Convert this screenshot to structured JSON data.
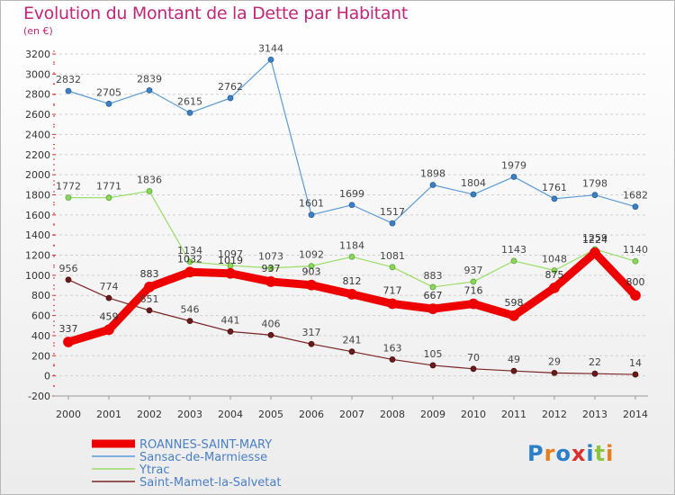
{
  "title": "Evolution du Montant de la Dette par Habitant",
  "unit_label": "(en €)",
  "logo": "Proxiti",
  "chart_data": {
    "type": "line",
    "title": "Evolution du Montant de la Dette par Habitant",
    "ylabel": "(en €)",
    "xlabel": "",
    "ylim": [
      -200,
      3200
    ],
    "yticks": [
      -200,
      0,
      200,
      400,
      600,
      800,
      1000,
      1200,
      1400,
      1600,
      1800,
      2000,
      2200,
      2400,
      2600,
      2800,
      3000,
      3200
    ],
    "x": [
      "2000",
      "2001",
      "2002",
      "2003",
      "2004",
      "2005",
      "2006",
      "2007",
      "2008",
      "2009",
      "2010",
      "2011",
      "2012",
      "2013",
      "2014"
    ],
    "grid": "horizontal dashed",
    "legend_position": "bottom-left",
    "series": [
      {
        "name": "ROANNES-SAINT-MARY",
        "color": "#ee0000",
        "values": [
          337,
          459,
          883,
          1032,
          1019,
          937,
          903,
          812,
          717,
          667,
          716,
          598,
          875,
          1224,
          800
        ]
      },
      {
        "name": "Sansac-de-Marmiesse",
        "color": "#5b9bd5",
        "values": [
          2832,
          2705,
          2839,
          2615,
          2762,
          3144,
          1601,
          1699,
          1517,
          1898,
          1804,
          1979,
          1761,
          1798,
          1682
        ]
      },
      {
        "name": "Ytrac",
        "color": "#99dd66",
        "values": [
          1772,
          1771,
          1836,
          1134,
          1097,
          1073,
          1092,
          1184,
          1081,
          883,
          937,
          1143,
          1048,
          1259,
          1140
        ]
      },
      {
        "name": "Saint-Mamet-la-Salvetat",
        "color": "#7a2424",
        "values": [
          956,
          774,
          651,
          546,
          441,
          406,
          317,
          241,
          163,
          105,
          70,
          49,
          29,
          22,
          14
        ]
      }
    ]
  }
}
